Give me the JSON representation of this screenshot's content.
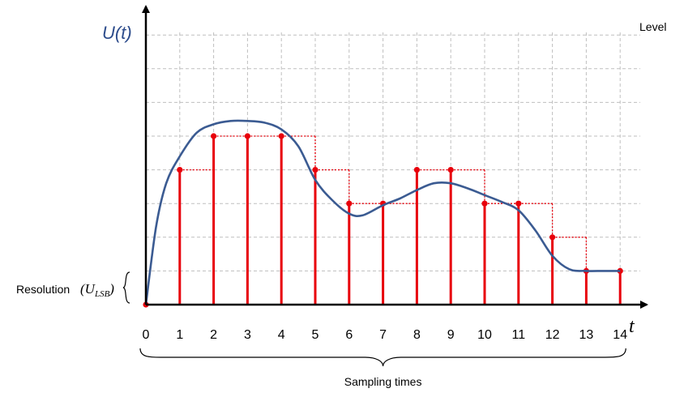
{
  "chart_data": {
    "type": "line",
    "ylabel": "U(t)",
    "xlabel": "t",
    "level_label": "Level",
    "resolution_label": "Resolution",
    "resolution_symbol_main": "U",
    "resolution_symbol_sub": "LSB",
    "sampling_label": "Sampling times",
    "x_ticks": [
      "0",
      "1",
      "2",
      "3",
      "4",
      "5",
      "6",
      "7",
      "8",
      "9",
      "10",
      "11",
      "12",
      "13",
      "14"
    ],
    "levels": 8,
    "xlim": [
      0,
      14
    ],
    "ylim": [
      0,
      8
    ],
    "colors": {
      "signal": "#3B5B92",
      "samples": "#E8000B",
      "axis": "#000000",
      "grid": "#BFBFBF",
      "ylabel": "#2E4D8C"
    },
    "series": [
      {
        "kind": "analog-signal",
        "x": [
          0,
          0.3,
          0.6,
          1,
          1.5,
          2,
          2.5,
          3,
          3.5,
          4,
          4.5,
          5,
          5.5,
          6,
          6.4,
          7,
          7.5,
          8,
          8.5,
          9,
          9.5,
          10,
          10.5,
          11,
          11.5,
          12,
          12.5,
          13,
          13.5,
          14
        ],
        "values": [
          0,
          2.3,
          3.6,
          4.4,
          5.1,
          5.35,
          5.45,
          5.45,
          5.4,
          5.2,
          4.7,
          3.7,
          3.1,
          2.7,
          2.65,
          2.95,
          3.15,
          3.4,
          3.6,
          3.6,
          3.45,
          3.25,
          3.05,
          2.8,
          2.2,
          1.45,
          1.05,
          1.0,
          1.0,
          1.0
        ]
      },
      {
        "kind": "quantized-samples",
        "x": [
          0,
          1,
          2,
          3,
          4,
          5,
          6,
          7,
          8,
          9,
          10,
          11,
          12,
          13,
          14
        ],
        "values": [
          0,
          4,
          5,
          5,
          5,
          4,
          3,
          3,
          4,
          4,
          3,
          3,
          2,
          1,
          1
        ]
      }
    ]
  }
}
